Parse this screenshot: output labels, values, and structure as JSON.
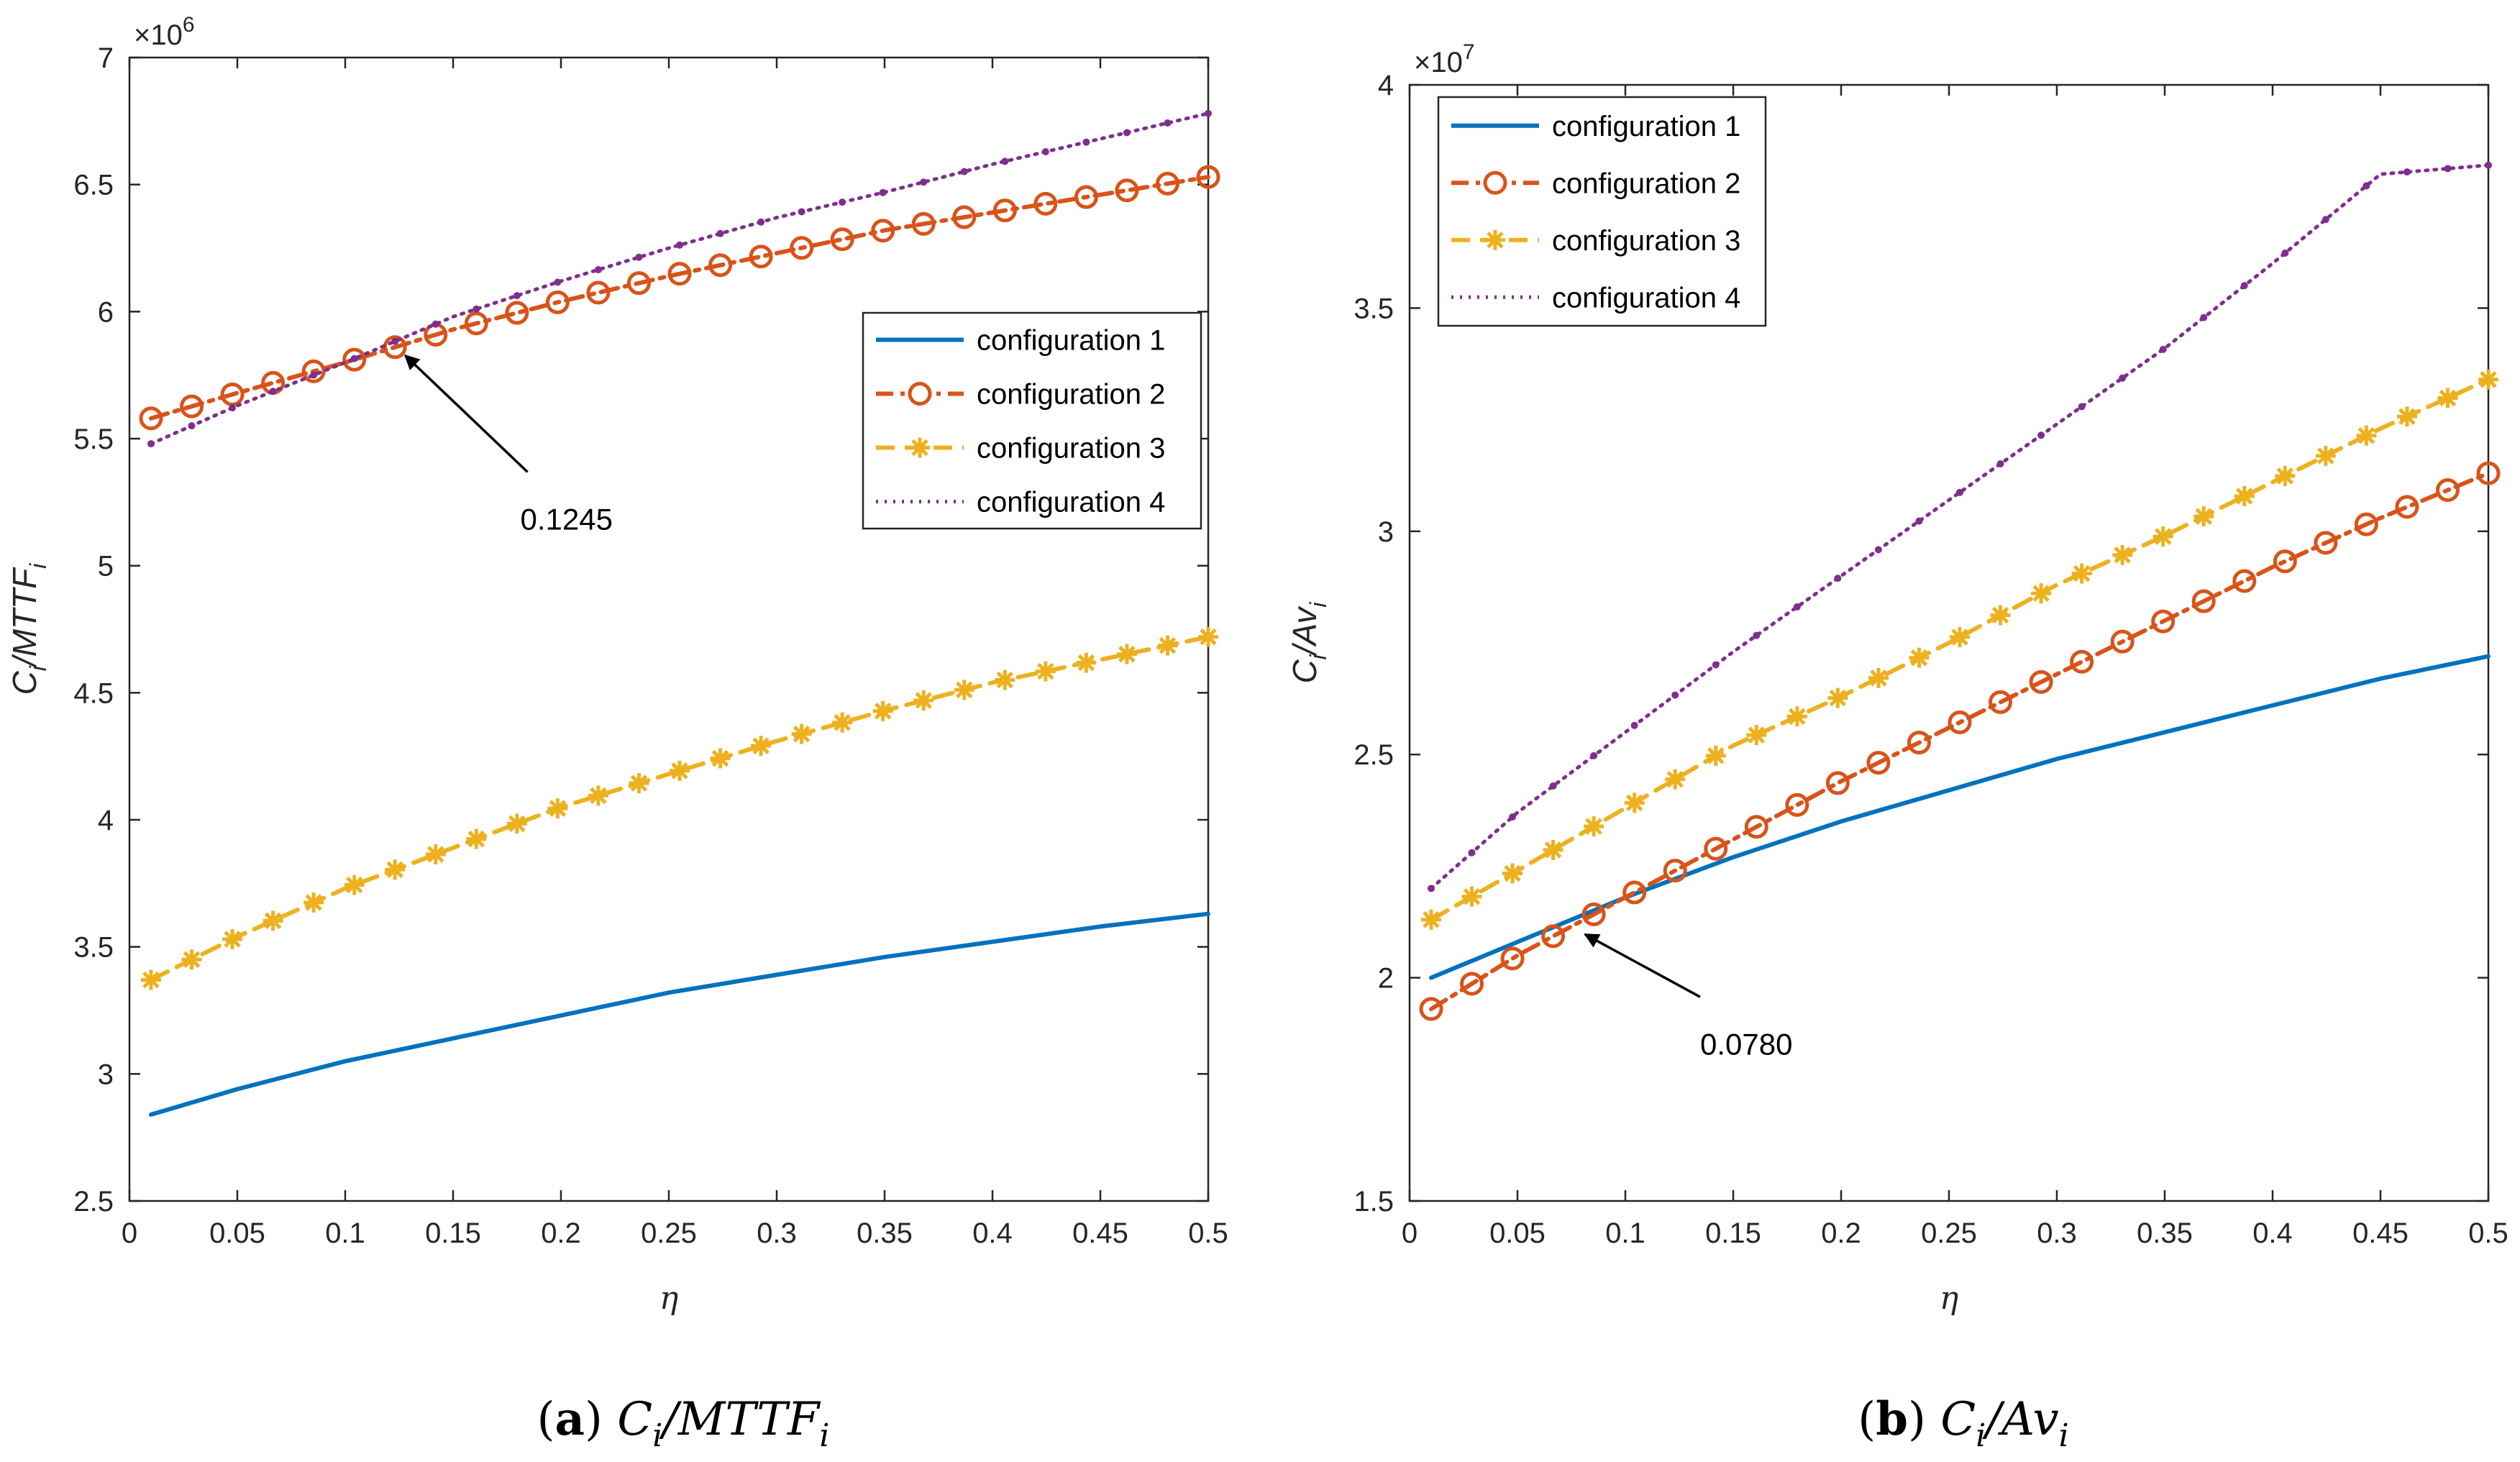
{
  "chart_data": [
    {
      "type": "line",
      "panel": "a",
      "caption": {
        "letter": "(a)",
        "formula": "C_i/MTTF_i"
      },
      "xlabel": "η",
      "ylabel": "C_i/MTTF_i",
      "y_exponent": "×10^6",
      "xlim": [
        0,
        0.5
      ],
      "ylim": [
        2.5,
        7
      ],
      "x_ticks": [
        "0",
        "0.05",
        "0.1",
        "0.15",
        "0.2",
        "0.25",
        "0.3",
        "0.35",
        "0.4",
        "0.45",
        "0.5"
      ],
      "y_ticks": [
        "2.5",
        "3",
        "3.5",
        "4",
        "4.5",
        "5",
        "5.5",
        "6",
        "6.5",
        "7"
      ],
      "grid": false,
      "legend_position": "right",
      "series": [
        {
          "name": "configuration 1",
          "style": "solid",
          "color": "#0072BD",
          "x": [
            0.01,
            0.05,
            0.1,
            0.15,
            0.2,
            0.25,
            0.3,
            0.35,
            0.4,
            0.45,
            0.5
          ],
          "y": [
            2.84,
            2.94,
            3.05,
            3.14,
            3.23,
            3.32,
            3.39,
            3.46,
            3.52,
            3.58,
            3.63
          ]
        },
        {
          "name": "configuration 2",
          "style": "dashdot",
          "marker": "circle",
          "color": "#D95319",
          "x": [
            0.01,
            0.05,
            0.1,
            0.15,
            0.2,
            0.25,
            0.3,
            0.35,
            0.4,
            0.45,
            0.5
          ],
          "y": [
            5.58,
            5.68,
            5.8,
            5.93,
            6.04,
            6.14,
            6.23,
            6.32,
            6.39,
            6.46,
            6.53
          ]
        },
        {
          "name": "configuration 3",
          "style": "dashed",
          "marker": "asterisk",
          "color": "#EDB120",
          "x": [
            0.01,
            0.05,
            0.1,
            0.15,
            0.2,
            0.25,
            0.3,
            0.35,
            0.4,
            0.45,
            0.5
          ],
          "y": [
            3.37,
            3.54,
            3.73,
            3.89,
            4.05,
            4.18,
            4.31,
            4.43,
            4.54,
            4.63,
            4.72
          ]
        },
        {
          "name": "configuration 4",
          "style": "dotted",
          "color": "#7E2F8E",
          "x": [
            0.01,
            0.05,
            0.1,
            0.15,
            0.2,
            0.25,
            0.3,
            0.35,
            0.4,
            0.45,
            0.5
          ],
          "y": [
            5.48,
            5.63,
            5.8,
            5.98,
            6.12,
            6.25,
            6.37,
            6.47,
            6.58,
            6.68,
            6.78
          ]
        }
      ],
      "annotation": {
        "text": "0.1245",
        "x": 0.1245,
        "y": 5.85
      }
    },
    {
      "type": "line",
      "panel": "b",
      "caption": {
        "letter": "(b)",
        "formula": "C_i/Av_i"
      },
      "xlabel": "η",
      "ylabel": "C_i/Av_i",
      "y_exponent": "×10^7",
      "xlim": [
        0,
        0.5
      ],
      "ylim": [
        1.5,
        4
      ],
      "x_ticks": [
        "0",
        "0.05",
        "0.1",
        "0.15",
        "0.2",
        "0.25",
        "0.3",
        "0.35",
        "0.4",
        "0.45",
        "0.5"
      ],
      "y_ticks": [
        "1.5",
        "2",
        "2.5",
        "3",
        "3.5",
        "4"
      ],
      "grid": false,
      "legend_position": "top-left",
      "series": [
        {
          "name": "configuration 1",
          "style": "solid",
          "color": "#0072BD",
          "x": [
            0.01,
            0.05,
            0.1,
            0.15,
            0.2,
            0.25,
            0.3,
            0.35,
            0.4,
            0.45,
            0.5
          ],
          "y": [
            2.0,
            2.08,
            2.18,
            2.27,
            2.35,
            2.42,
            2.49,
            2.55,
            2.61,
            2.67,
            2.72
          ]
        },
        {
          "name": "configuration 2",
          "style": "dashdot",
          "marker": "circle",
          "color": "#D95319",
          "x": [
            0.01,
            0.05,
            0.1,
            0.15,
            0.2,
            0.25,
            0.3,
            0.35,
            0.4,
            0.45,
            0.5
          ],
          "y": [
            1.93,
            2.05,
            2.18,
            2.31,
            2.44,
            2.56,
            2.68,
            2.8,
            2.92,
            3.03,
            3.13
          ]
        },
        {
          "name": "configuration 3",
          "style": "dashed",
          "marker": "asterisk",
          "color": "#EDB120",
          "x": [
            0.01,
            0.05,
            0.1,
            0.15,
            0.2,
            0.25,
            0.3,
            0.35,
            0.4,
            0.45,
            0.5
          ],
          "y": [
            2.13,
            2.24,
            2.38,
            2.52,
            2.63,
            2.75,
            2.88,
            2.99,
            3.11,
            3.23,
            3.34
          ]
        },
        {
          "name": "configuration 4",
          "style": "dotted",
          "color": "#7E2F8E",
          "x": [
            0.01,
            0.05,
            0.1,
            0.15,
            0.2,
            0.25,
            0.3,
            0.35,
            0.4,
            0.45,
            0.5
          ],
          "y": [
            2.2,
            2.37,
            2.55,
            2.73,
            2.9,
            3.07,
            3.24,
            3.41,
            3.6,
            3.8,
            3.82
          ]
        }
      ],
      "annotation": {
        "text": "0.0780",
        "x": 0.078,
        "y": 2.11
      }
    }
  ]
}
